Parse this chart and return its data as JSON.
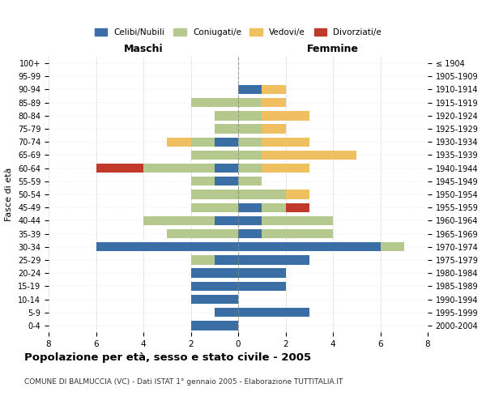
{
  "age_groups": [
    "0-4",
    "5-9",
    "10-14",
    "15-19",
    "20-24",
    "25-29",
    "30-34",
    "35-39",
    "40-44",
    "45-49",
    "50-54",
    "55-59",
    "60-64",
    "65-69",
    "70-74",
    "75-79",
    "80-84",
    "85-89",
    "90-94",
    "95-99",
    "100+"
  ],
  "birth_years": [
    "2000-2004",
    "1995-1999",
    "1990-1994",
    "1985-1989",
    "1980-1984",
    "1975-1979",
    "1970-1974",
    "1965-1969",
    "1960-1964",
    "1955-1959",
    "1950-1954",
    "1945-1949",
    "1940-1944",
    "1935-1939",
    "1930-1934",
    "1925-1929",
    "1920-1924",
    "1915-1919",
    "1910-1914",
    "1905-1909",
    "≤ 1904"
  ],
  "males": {
    "celibi": [
      2,
      1,
      2,
      2,
      2,
      1,
      6,
      0,
      1,
      0,
      0,
      1,
      1,
      0,
      1,
      0,
      0,
      0,
      0,
      0,
      0
    ],
    "coniugati": [
      0,
      0,
      0,
      0,
      0,
      1,
      0,
      3,
      3,
      2,
      2,
      1,
      3,
      2,
      1,
      1,
      1,
      2,
      0,
      0,
      0
    ],
    "vedovi": [
      0,
      0,
      0,
      0,
      0,
      0,
      0,
      0,
      0,
      0,
      0,
      0,
      0,
      0,
      1,
      0,
      0,
      0,
      0,
      0,
      0
    ],
    "divorziati": [
      0,
      0,
      0,
      0,
      0,
      0,
      0,
      0,
      0,
      0,
      0,
      0,
      2,
      0,
      0,
      0,
      0,
      0,
      0,
      0,
      0
    ]
  },
  "females": {
    "nubili": [
      0,
      3,
      0,
      2,
      2,
      3,
      6,
      1,
      1,
      1,
      0,
      0,
      0,
      0,
      0,
      0,
      0,
      0,
      1,
      0,
      0
    ],
    "coniugate": [
      0,
      0,
      0,
      0,
      0,
      0,
      1,
      3,
      3,
      1,
      2,
      1,
      1,
      1,
      1,
      1,
      1,
      1,
      0,
      0,
      0
    ],
    "vedove": [
      0,
      0,
      0,
      0,
      0,
      0,
      0,
      0,
      0,
      0,
      1,
      0,
      2,
      4,
      2,
      1,
      2,
      1,
      1,
      0,
      0
    ],
    "divorziate": [
      0,
      0,
      0,
      0,
      0,
      0,
      0,
      0,
      0,
      1,
      0,
      0,
      0,
      0,
      0,
      0,
      0,
      0,
      0,
      0,
      0
    ]
  },
  "color_celibi": "#3A6EA5",
  "color_coniugati": "#B5C98E",
  "color_vedovi": "#F0C060",
  "color_divorziati": "#C0392B",
  "title": "Popolazione per età, sesso e stato civile - 2005",
  "subtitle": "COMUNE DI BALMUCCIA (VC) - Dati ISTAT 1° gennaio 2005 - Elaborazione TUTTITALIA.IT",
  "xlabel_left": "Maschi",
  "xlabel_right": "Femmine",
  "ylabel_left": "Fasce di età",
  "xlim": 8,
  "bg_color": "#ffffff",
  "grid_color": "#cccccc"
}
